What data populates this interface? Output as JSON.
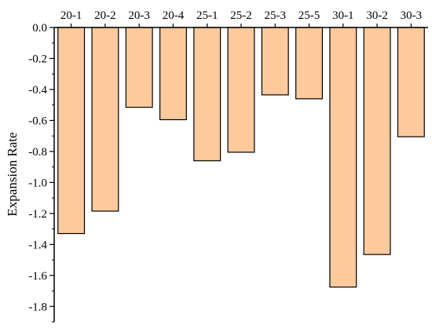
{
  "chart_data": {
    "type": "bar",
    "categories": [
      "20-1",
      "20-2",
      "20-3",
      "20-4",
      "25-1",
      "25-2",
      "25-3",
      "25-5",
      "30-1",
      "30-2",
      "30-3"
    ],
    "values": [
      -1.33,
      -1.185,
      -0.515,
      -0.595,
      -0.86,
      -0.805,
      -0.435,
      -0.46,
      -1.675,
      -1.465,
      -0.705
    ],
    "title": "",
    "xlabel": "",
    "ylabel": "Expansion Rate",
    "ylim": [
      -1.9,
      0.0
    ],
    "yticks": [
      "0.0",
      "-0.2",
      "-0.4",
      "-0.6",
      "-0.8",
      "-1.0",
      "-1.2",
      "-1.4",
      "-1.6",
      "-1.8"
    ],
    "category_axis_position": "top",
    "grid": false,
    "legend": "none",
    "colors": {
      "bar_fill": "#FDC99D",
      "bar_stroke": "#000000",
      "axis": "#000000"
    }
  }
}
